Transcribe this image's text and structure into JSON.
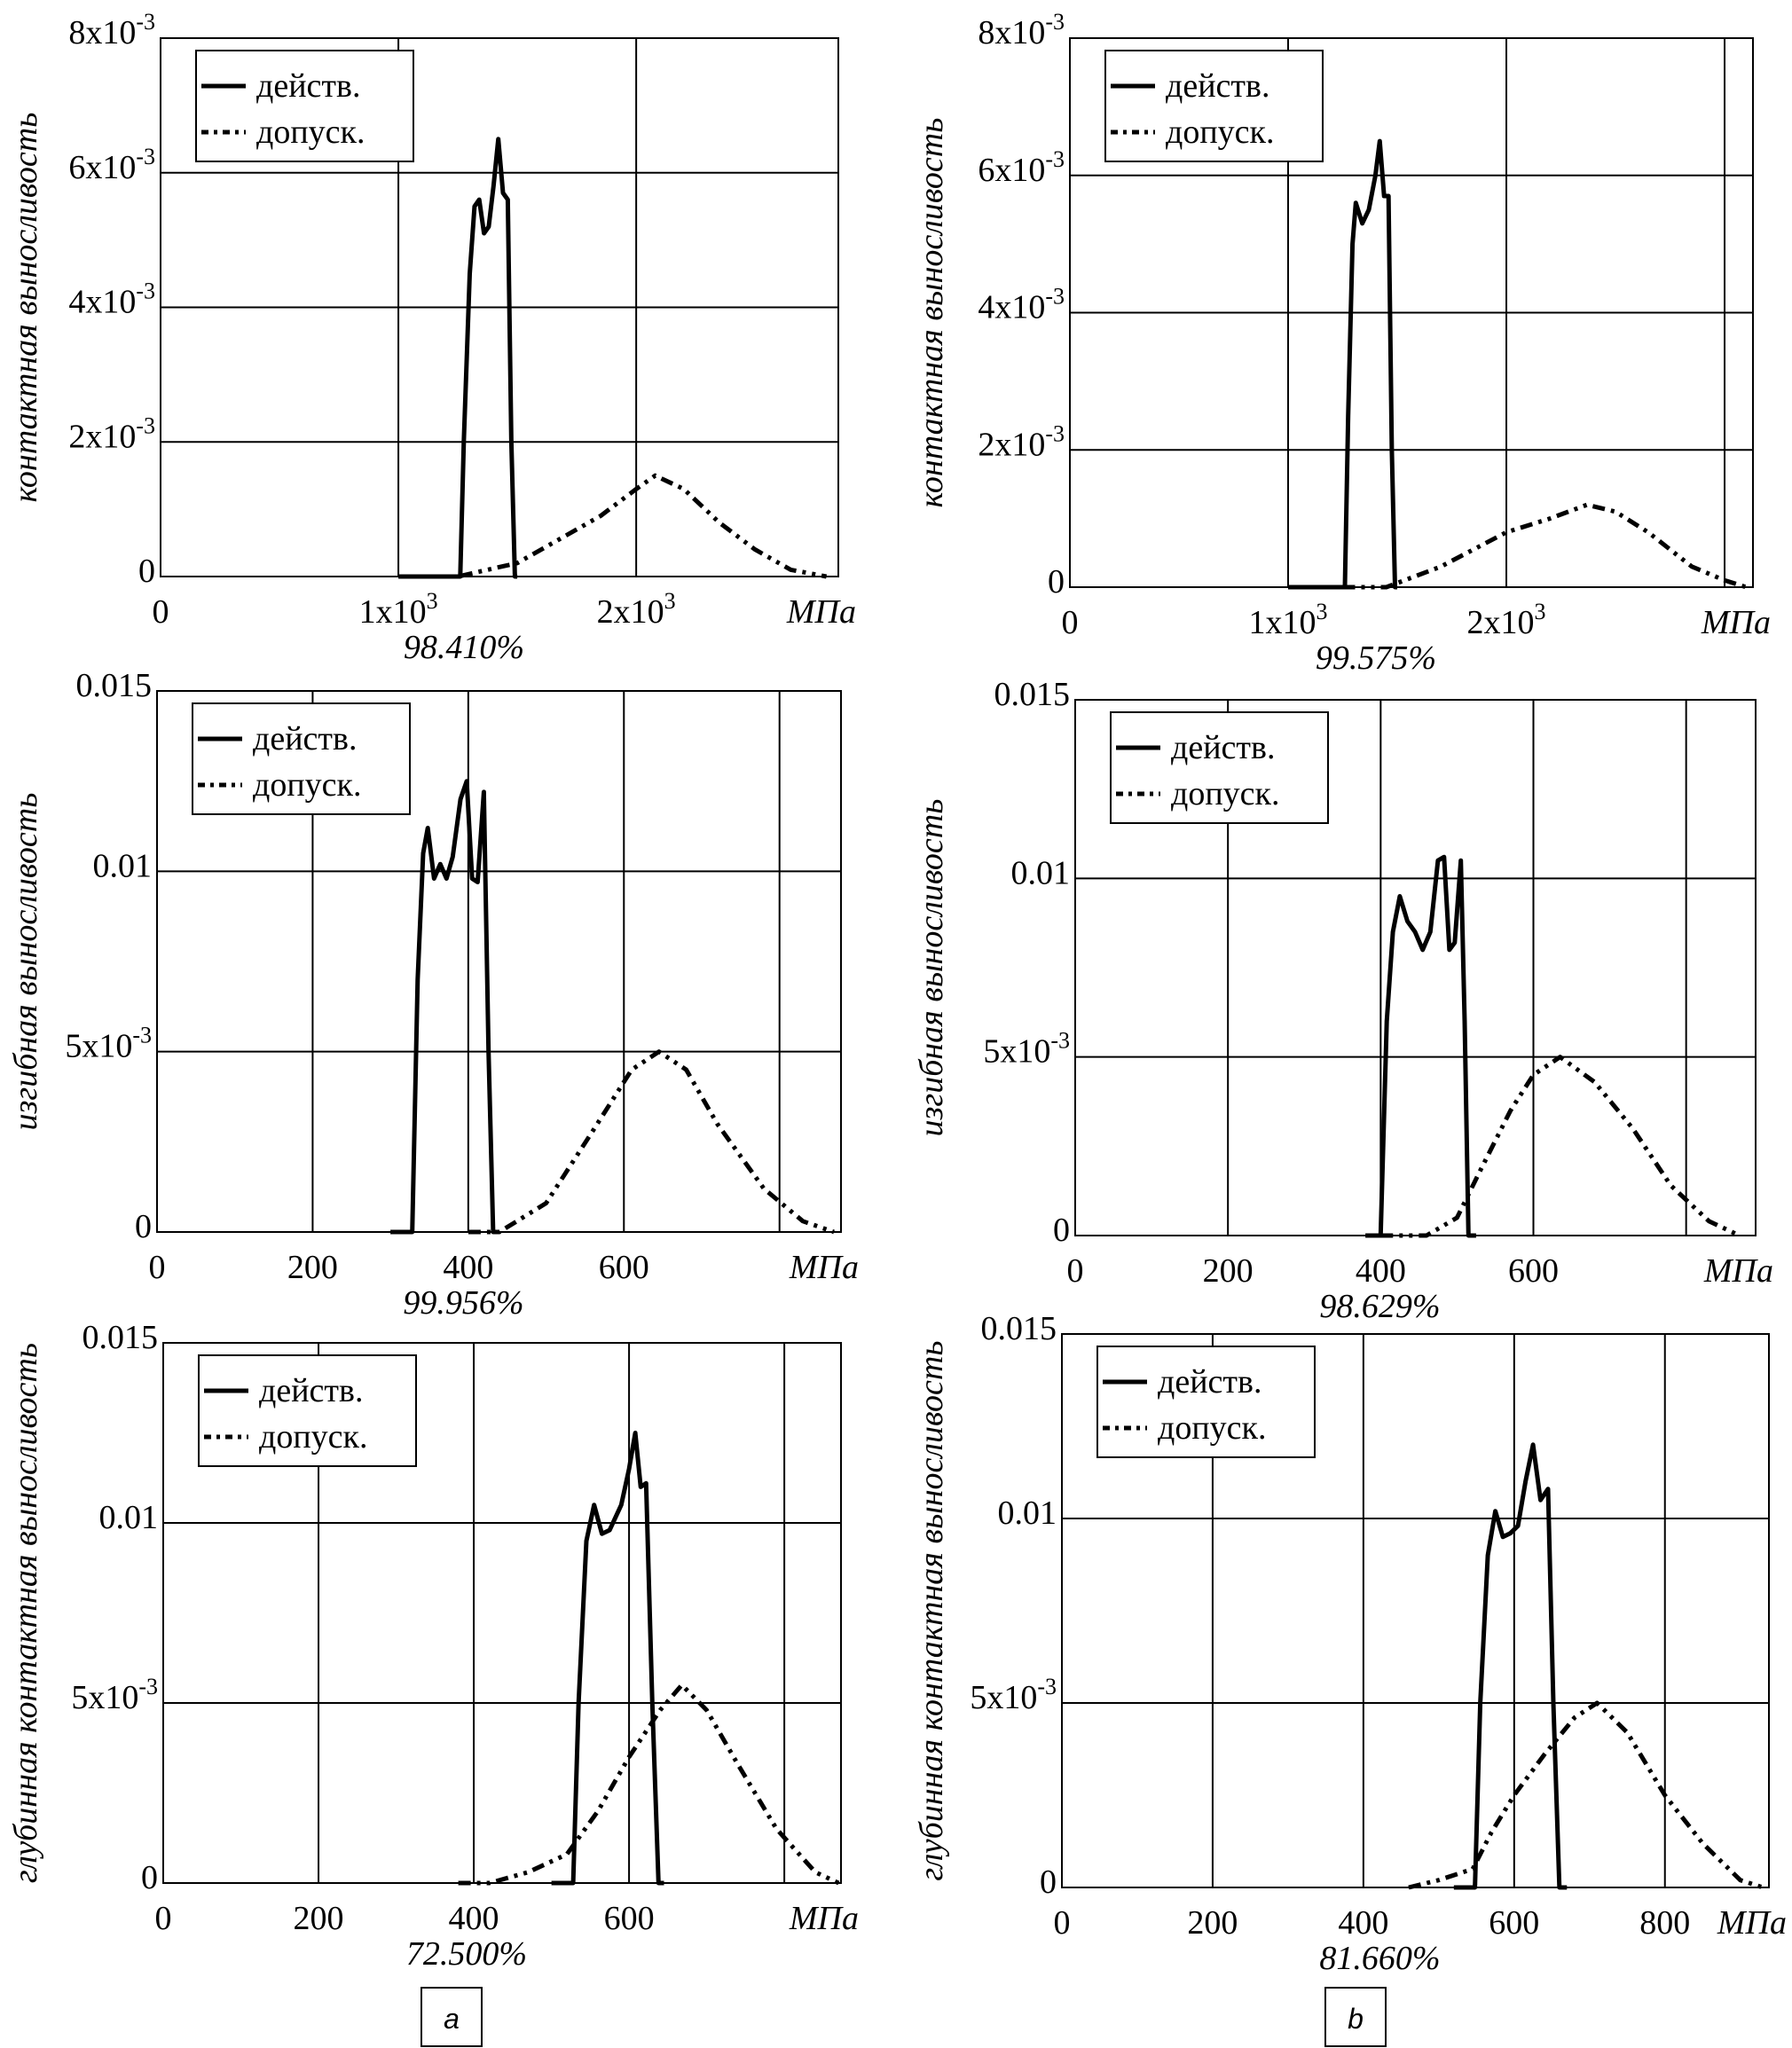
{
  "legend": {
    "actual": "действ.",
    "allowed": "допуск."
  },
  "panel_labels": [
    "a",
    "b"
  ],
  "chart_data": [
    {
      "type": "line",
      "panel": "a",
      "ylabel": "контактная выносливость",
      "xunit": "МПа",
      "percent": "98.410%",
      "xlim": [
        0,
        2850
      ],
      "ylim": [
        0,
        0.008
      ],
      "xticks": [
        {
          "v": 0,
          "base": "0",
          "exp": ""
        },
        {
          "v": 1000,
          "base": "1x10",
          "exp": "3"
        },
        {
          "v": 2000,
          "base": "2x10",
          "exp": "3"
        }
      ],
      "yticks": [
        {
          "v": 0,
          "base": "0",
          "exp": ""
        },
        {
          "v": 0.002,
          "base": "2x10",
          "exp": "-3"
        },
        {
          "v": 0.004,
          "base": "4x10",
          "exp": "-3"
        },
        {
          "v": 0.006,
          "base": "6x10",
          "exp": "-3"
        },
        {
          "v": 0.008,
          "base": "8x10",
          "exp": "-3"
        }
      ],
      "series": [
        {
          "name": "действ.",
          "x": [
            1000,
            1260,
            1275,
            1300,
            1320,
            1340,
            1360,
            1380,
            1400,
            1420,
            1440,
            1460,
            1475,
            1490,
            1500
          ],
          "y": [
            0,
            0,
            0.002,
            0.0045,
            0.0055,
            0.0056,
            0.0051,
            0.0052,
            0.0058,
            0.0065,
            0.0057,
            0.0056,
            0.002,
            0,
            0
          ]
        },
        {
          "name": "допуск.",
          "x": [
            1100,
            1250,
            1500,
            1700,
            1850,
            2000,
            2080,
            2200,
            2350,
            2500,
            2650,
            2800
          ],
          "y": [
            0,
            0,
            0.0002,
            0.0006,
            0.0009,
            0.0013,
            0.0015,
            0.0013,
            0.0008,
            0.0004,
            0.0001,
            0
          ]
        }
      ]
    },
    {
      "type": "line",
      "panel": "b",
      "ylabel": "контактная выносливость",
      "xunit": "МПа",
      "percent": "99.575%",
      "xlim": [
        0,
        3130
      ],
      "ylim": [
        0,
        0.008
      ],
      "xticks": [
        {
          "v": 0,
          "base": "0",
          "exp": ""
        },
        {
          "v": 1000,
          "base": "1x10",
          "exp": "3"
        },
        {
          "v": 2000,
          "base": "2x10",
          "exp": "3"
        },
        {
          "v": 3000,
          "base": "",
          "exp": ""
        }
      ],
      "yticks": [
        {
          "v": 0,
          "base": "0",
          "exp": ""
        },
        {
          "v": 0.002,
          "base": "2x10",
          "exp": "-3"
        },
        {
          "v": 0.004,
          "base": "4x10",
          "exp": "-3"
        },
        {
          "v": 0.006,
          "base": "6x10",
          "exp": "-3"
        },
        {
          "v": 0.008,
          "base": "8x10",
          "exp": "-3"
        }
      ],
      "series": [
        {
          "name": "действ.",
          "x": [
            1000,
            1260,
            1275,
            1295,
            1310,
            1340,
            1370,
            1400,
            1420,
            1440,
            1460,
            1475,
            1490,
            1500
          ],
          "y": [
            0,
            0,
            0.0025,
            0.005,
            0.0056,
            0.0053,
            0.0055,
            0.006,
            0.0065,
            0.0057,
            0.0057,
            0.002,
            0,
            0
          ]
        },
        {
          "name": "допуск.",
          "x": [
            1250,
            1450,
            1700,
            2000,
            2200,
            2370,
            2500,
            2650,
            2850,
            3000,
            3100
          ],
          "y": [
            0,
            0,
            0.0003,
            0.0008,
            0.001,
            0.0012,
            0.0011,
            0.0008,
            0.0003,
            0.0001,
            0
          ]
        }
      ]
    },
    {
      "type": "line",
      "panel": "a",
      "ylabel": "изгибная выносливость",
      "xunit": "МПа",
      "percent": "99.956%",
      "xlim": [
        0,
        879
      ],
      "ylim": [
        0,
        0.015
      ],
      "xticks": [
        {
          "v": 0,
          "base": "0",
          "exp": ""
        },
        {
          "v": 200,
          "base": "200",
          "exp": ""
        },
        {
          "v": 400,
          "base": "400",
          "exp": ""
        },
        {
          "v": 600,
          "base": "600",
          "exp": ""
        },
        {
          "v": 800,
          "base": "",
          "exp": ""
        }
      ],
      "yticks": [
        {
          "v": 0,
          "base": "0",
          "exp": ""
        },
        {
          "v": 0.005,
          "base": "5x10",
          "exp": "-3"
        },
        {
          "v": 0.01,
          "base": "0.01",
          "exp": ""
        },
        {
          "v": 0.015,
          "base": "0.015",
          "exp": ""
        }
      ],
      "series": [
        {
          "name": "действ.",
          "x": [
            300,
            328,
            335,
            342,
            348,
            356,
            364,
            372,
            380,
            390,
            398,
            405,
            412,
            420,
            426,
            432,
            440
          ],
          "y": [
            0,
            0,
            0.007,
            0.0105,
            0.0112,
            0.0098,
            0.0102,
            0.0098,
            0.0104,
            0.012,
            0.0125,
            0.0098,
            0.0097,
            0.0122,
            0.005,
            0,
            0
          ]
        },
        {
          "name": "допуск.",
          "x": [
            400,
            440,
            500,
            560,
            610,
            645,
            680,
            720,
            780,
            830,
            870
          ],
          "y": [
            0,
            0,
            0.0008,
            0.0028,
            0.0045,
            0.005,
            0.0045,
            0.003,
            0.0012,
            0.0003,
            0
          ]
        }
      ]
    },
    {
      "type": "line",
      "panel": "b",
      "ylabel": "изгибная выносливость",
      "xunit": "МПа",
      "percent": "98.629%",
      "xlim": [
        0,
        891
      ],
      "ylim": [
        0,
        0.015
      ],
      "xticks": [
        {
          "v": 0,
          "base": "0",
          "exp": ""
        },
        {
          "v": 200,
          "base": "200",
          "exp": ""
        },
        {
          "v": 400,
          "base": "400",
          "exp": ""
        },
        {
          "v": 600,
          "base": "600",
          "exp": ""
        },
        {
          "v": 800,
          "base": "",
          "exp": ""
        }
      ],
      "yticks": [
        {
          "v": 0,
          "base": "0",
          "exp": ""
        },
        {
          "v": 0.005,
          "base": "5x10",
          "exp": "-3"
        },
        {
          "v": 0.01,
          "base": "0.01",
          "exp": ""
        },
        {
          "v": 0.015,
          "base": "0.015",
          "exp": ""
        }
      ],
      "series": [
        {
          "name": "действ.",
          "x": [
            380,
            400,
            408,
            416,
            425,
            435,
            445,
            455,
            465,
            475,
            483,
            490,
            497,
            505,
            510,
            515,
            525
          ],
          "y": [
            0,
            0,
            0.006,
            0.0085,
            0.0095,
            0.0088,
            0.0085,
            0.008,
            0.0085,
            0.0105,
            0.0106,
            0.008,
            0.0082,
            0.0105,
            0.006,
            0,
            0
          ]
        },
        {
          "name": "допуск.",
          "x": [
            400,
            460,
            500,
            530,
            570,
            600,
            635,
            680,
            730,
            780,
            830,
            870
          ],
          "y": [
            0,
            0,
            0.0005,
            0.0018,
            0.0035,
            0.0045,
            0.005,
            0.0043,
            0.003,
            0.0014,
            0.0004,
            0
          ]
        }
      ]
    },
    {
      "type": "line",
      "panel": "a",
      "ylabel": "глубинная контактная выносливость",
      "xunit": "МПа",
      "percent": "72.500%",
      "xlim": [
        0,
        873
      ],
      "ylim": [
        0,
        0.015
      ],
      "xticks": [
        {
          "v": 0,
          "base": "0",
          "exp": ""
        },
        {
          "v": 200,
          "base": "200",
          "exp": ""
        },
        {
          "v": 400,
          "base": "400",
          "exp": ""
        },
        {
          "v": 600,
          "base": "600",
          "exp": ""
        },
        {
          "v": 800,
          "base": "",
          "exp": ""
        }
      ],
      "yticks": [
        {
          "v": 0,
          "base": "0",
          "exp": ""
        },
        {
          "v": 0.005,
          "base": "5x10",
          "exp": "-3"
        },
        {
          "v": 0.01,
          "base": "0.01",
          "exp": ""
        },
        {
          "v": 0.015,
          "base": "0.015",
          "exp": ""
        }
      ],
      "series": [
        {
          "name": "действ.",
          "x": [
            500,
            528,
            535,
            545,
            555,
            565,
            575,
            590,
            600,
            608,
            615,
            622,
            630,
            638,
            645
          ],
          "y": [
            0,
            0,
            0.005,
            0.0095,
            0.0105,
            0.0097,
            0.0098,
            0.0105,
            0.0115,
            0.0125,
            0.011,
            0.0111,
            0.005,
            0,
            0
          ]
        },
        {
          "name": "допуск.",
          "x": [
            380,
            420,
            470,
            520,
            560,
            600,
            640,
            668,
            700,
            740,
            790,
            840,
            870
          ],
          "y": [
            0,
            0,
            0.0003,
            0.0008,
            0.002,
            0.0035,
            0.0048,
            0.0055,
            0.0048,
            0.0033,
            0.0015,
            0.0003,
            0
          ]
        }
      ]
    },
    {
      "type": "line",
      "panel": "b",
      "ylabel": "глубинная контактная выносливость",
      "xunit": "МПа",
      "percent": "81.660%",
      "xlim": [
        0,
        938
      ],
      "ylim": [
        0,
        0.015
      ],
      "xticks": [
        {
          "v": 0,
          "base": "0",
          "exp": ""
        },
        {
          "v": 200,
          "base": "200",
          "exp": ""
        },
        {
          "v": 400,
          "base": "400",
          "exp": ""
        },
        {
          "v": 600,
          "base": "600",
          "exp": ""
        },
        {
          "v": 800,
          "base": "800",
          "exp": ""
        }
      ],
      "yticks": [
        {
          "v": 0,
          "base": "0",
          "exp": ""
        },
        {
          "v": 0.005,
          "base": "5x10",
          "exp": "-3"
        },
        {
          "v": 0.01,
          "base": "0.01",
          "exp": ""
        },
        {
          "v": 0.015,
          "base": "0.015",
          "exp": ""
        }
      ],
      "series": [
        {
          "name": "действ.",
          "x": [
            520,
            548,
            555,
            565,
            575,
            585,
            595,
            605,
            615,
            625,
            635,
            645,
            652,
            660,
            670
          ],
          "y": [
            0,
            0,
            0.005,
            0.009,
            0.0102,
            0.0095,
            0.0096,
            0.0098,
            0.011,
            0.012,
            0.0105,
            0.0108,
            0.005,
            0,
            0
          ]
        },
        {
          "name": "допуск.",
          "x": [
            460,
            500,
            545,
            570,
            600,
            640,
            680,
            710,
            750,
            800,
            850,
            900,
            930
          ],
          "y": [
            0,
            0.0002,
            0.0005,
            0.0015,
            0.0025,
            0.0036,
            0.0046,
            0.005,
            0.0042,
            0.0025,
            0.0012,
            0.0002,
            0
          ]
        }
      ]
    }
  ]
}
